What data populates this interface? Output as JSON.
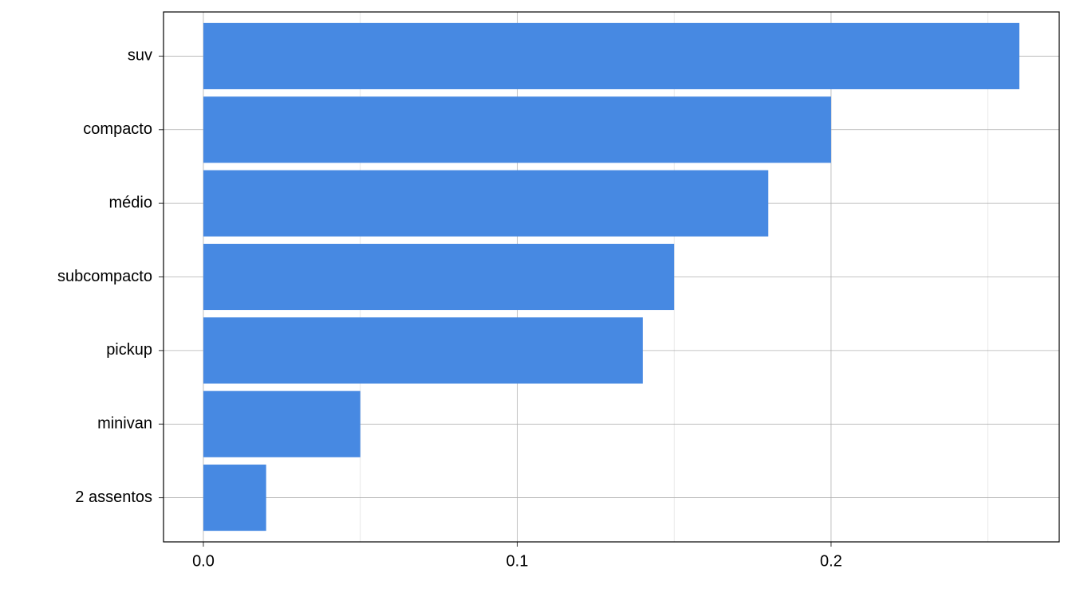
{
  "chart_data": {
    "type": "bar",
    "orientation": "horizontal",
    "categories": [
      "suv",
      "compacto",
      "médio",
      "subcompacto",
      "pickup",
      "minivan",
      "2 assentos"
    ],
    "values": [
      0.26,
      0.2,
      0.18,
      0.15,
      0.14,
      0.05,
      0.02
    ],
    "color": "#4789e2",
    "xlim": [
      -0.0127,
      0.2727
    ],
    "xticks": [
      {
        "value": 0,
        "label": "0.0"
      },
      0.1,
      0.2
    ],
    "minor_xticks": [
      0.05,
      0.15,
      0.25
    ],
    "grid": true
  }
}
